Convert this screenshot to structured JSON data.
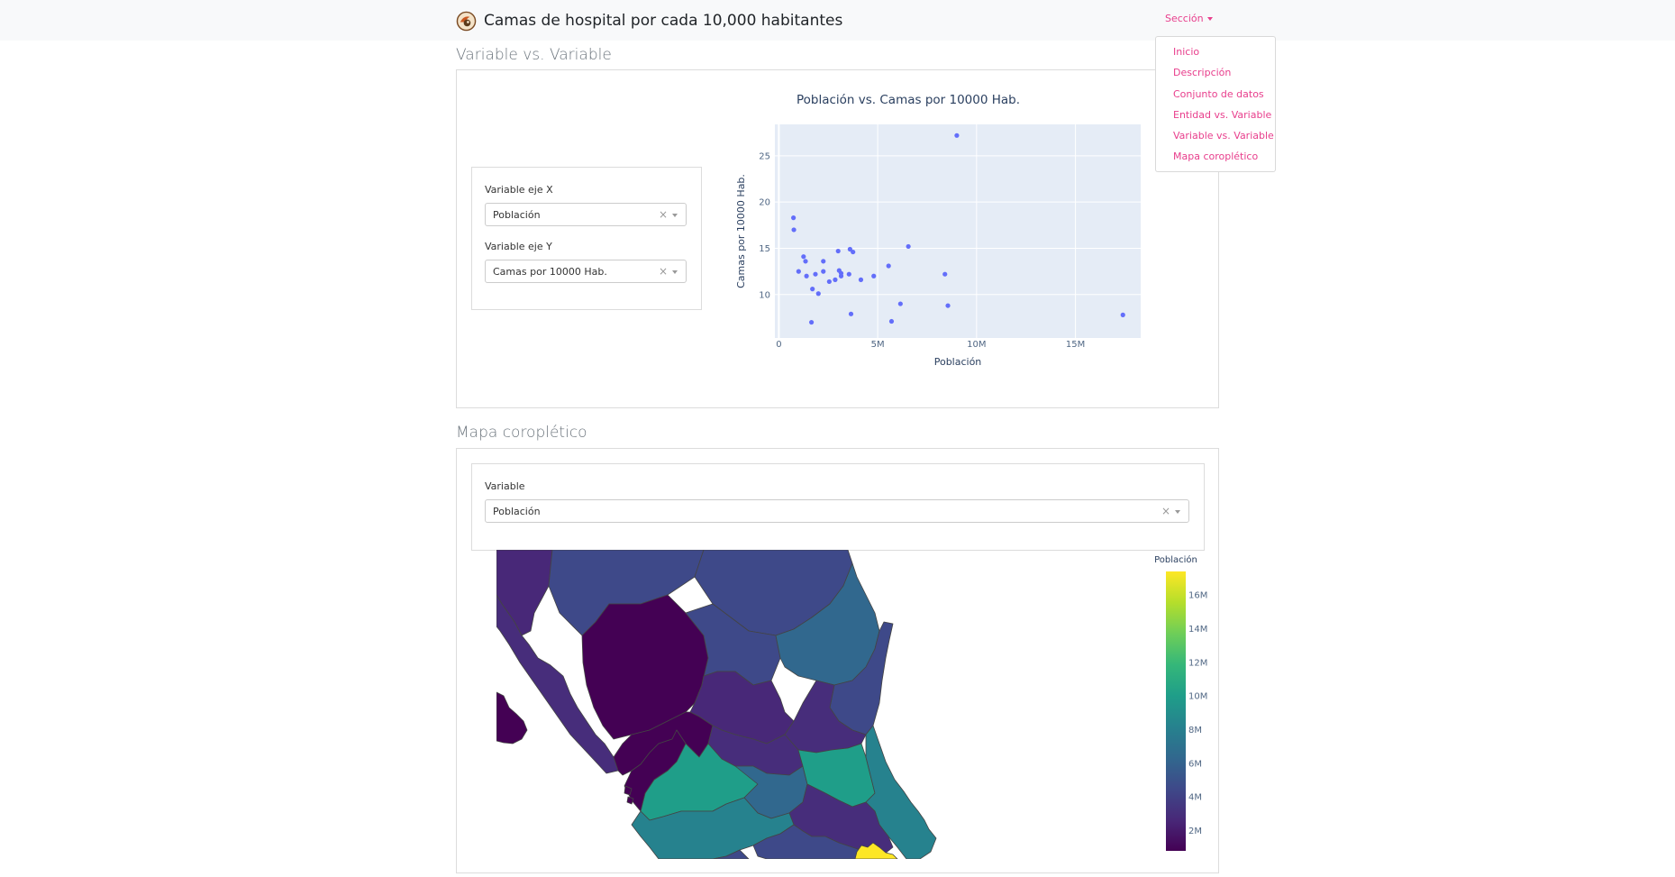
{
  "header": {
    "title": "Camas de hospital por cada 10,000 habitantes",
    "logo_icon": "hospital-logo-icon",
    "nav_toggle_label": "Sección"
  },
  "nav_menu": {
    "items": [
      "Inicio",
      "Descripción",
      "Conjunto de datos",
      "Entidad vs. Variable",
      "Variable vs. Variable",
      "Mapa coroplético"
    ]
  },
  "section_scatter": {
    "title": "Variable vs. Variable",
    "x_label": "Variable eje X",
    "x_value": "Población",
    "y_label": "Variable eje Y",
    "y_value": "Camas por 10000 Hab.",
    "clear_symbol": "×"
  },
  "section_map": {
    "title": "Mapa coroplético",
    "variable_label": "Variable",
    "variable_value": "Población",
    "clear_symbol": "×"
  },
  "chart_data": [
    {
      "type": "scatter",
      "title": "Población vs. Camas por 10000 Hab.",
      "xlabel": "Población",
      "ylabel": "Camas por 10000 Hab.",
      "xlim": [
        -200000,
        18300000
      ],
      "ylim": [
        5.3,
        28.4
      ],
      "x_ticks": [
        0,
        5000000,
        10000000,
        15000000
      ],
      "x_tick_labels": [
        "0",
        "5M",
        "10M",
        "15M"
      ],
      "y_ticks": [
        10,
        15,
        20,
        25
      ],
      "y_tick_labels": [
        "10",
        "15",
        "20",
        "25"
      ],
      "grid": true,
      "marker_color": "#636efa",
      "plot_bg": "#e5ecf6",
      "points": [
        {
          "x": 740000,
          "y": 18.3
        },
        {
          "x": 760000,
          "y": 17.0
        },
        {
          "x": 1000000,
          "y": 12.5
        },
        {
          "x": 1250000,
          "y": 14.1
        },
        {
          "x": 1350000,
          "y": 13.6
        },
        {
          "x": 1400000,
          "y": 12.0
        },
        {
          "x": 1650000,
          "y": 7.0
        },
        {
          "x": 1700000,
          "y": 10.6
        },
        {
          "x": 1850000,
          "y": 12.2
        },
        {
          "x": 2000000,
          "y": 10.1
        },
        {
          "x": 2250000,
          "y": 12.5
        },
        {
          "x": 2250000,
          "y": 13.6
        },
        {
          "x": 2550000,
          "y": 11.4
        },
        {
          "x": 2850000,
          "y": 11.6
        },
        {
          "x": 3000000,
          "y": 14.7
        },
        {
          "x": 3050000,
          "y": 12.6
        },
        {
          "x": 3150000,
          "y": 12.3
        },
        {
          "x": 3150000,
          "y": 12.0
        },
        {
          "x": 3550000,
          "y": 12.2
        },
        {
          "x": 3600000,
          "y": 14.9
        },
        {
          "x": 3650000,
          "y": 7.9
        },
        {
          "x": 3750000,
          "y": 14.6
        },
        {
          "x": 4150000,
          "y": 11.6
        },
        {
          "x": 4800000,
          "y": 12.0
        },
        {
          "x": 5550000,
          "y": 13.1
        },
        {
          "x": 5700000,
          "y": 7.1
        },
        {
          "x": 6150000,
          "y": 9.0
        },
        {
          "x": 6550000,
          "y": 15.2
        },
        {
          "x": 8400000,
          "y": 12.2
        },
        {
          "x": 8550000,
          "y": 8.8
        },
        {
          "x": 9000000,
          "y": 27.2
        },
        {
          "x": 17400000,
          "y": 7.8
        }
      ]
    },
    {
      "type": "heatmap",
      "colorbar_title": "Población",
      "colorbar_range": [
        800000,
        17400000
      ],
      "colorbar_ticks": [
        2000000,
        4000000,
        6000000,
        8000000,
        10000000,
        12000000,
        14000000,
        16000000
      ],
      "colorbar_tick_labels": [
        "2M",
        "4M",
        "6M",
        "8M",
        "10M",
        "12M",
        "14M",
        "16M"
      ],
      "colorscale": [
        "#440154",
        "#482878",
        "#3e4989",
        "#31688e",
        "#26828e",
        "#1f9e89",
        "#35b779",
        "#6ece58",
        "#b5de2b",
        "#fde725"
      ]
    }
  ]
}
